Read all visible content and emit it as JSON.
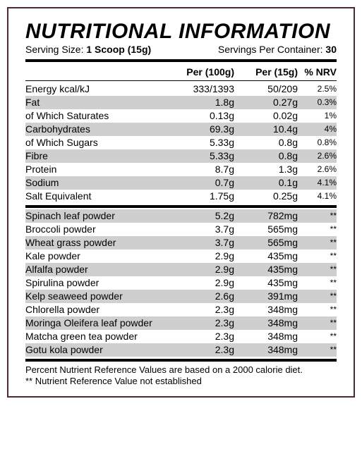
{
  "title": "NUTRITIONAL INFORMATION",
  "serving": {
    "size_label": "Serving Size:",
    "size_value": "1 Scoop (15g)",
    "per_container_label": "Servings Per Container:",
    "per_container_value": "30"
  },
  "headers": {
    "per100": "Per (100g)",
    "per15": "Per (15g)",
    "nrv": "% NRV"
  },
  "colors": {
    "border": "#4d2a2e",
    "shade": "#cfcfcf",
    "text": "#000000",
    "background": "#ffffff"
  },
  "section1": [
    {
      "name": "Energy kcal/kJ",
      "per100": "333/1393",
      "per15": "50/209",
      "nrv": "2.5%",
      "shade": false
    },
    {
      "name": "Fat",
      "per100": "1.8g",
      "per15": "0.27g",
      "nrv": "0.3%",
      "shade": true
    },
    {
      "name": "of Which Saturates",
      "per100": "0.13g",
      "per15": "0.02g",
      "nrv": "1%",
      "shade": false
    },
    {
      "name": "Carbohydrates",
      "per100": "69.3g",
      "per15": "10.4g",
      "nrv": "4%",
      "shade": true
    },
    {
      "name": "of Which Sugars",
      "per100": "5.33g",
      "per15": "0.8g",
      "nrv": "0.8%",
      "shade": false
    },
    {
      "name": "Fibre",
      "per100": "5.33g",
      "per15": "0.8g",
      "nrv": "2.6%",
      "shade": true
    },
    {
      "name": "Protein",
      "per100": "8.7g",
      "per15": "1.3g",
      "nrv": "2.6%",
      "shade": false
    },
    {
      "name": "Sodium",
      "per100": "0.7g",
      "per15": "0.1g",
      "nrv": "4.1%",
      "shade": true
    },
    {
      "name": "Salt Equivalent",
      "per100": "1.75g",
      "per15": "0.25g",
      "nrv": "4.1%",
      "shade": false
    }
  ],
  "section2": [
    {
      "name": "Spinach leaf powder",
      "per100": "5.2g",
      "per15": "782mg",
      "nrv": "**",
      "shade": true
    },
    {
      "name": "Broccoli powder",
      "per100": "3.7g",
      "per15": "565mg",
      "nrv": "**",
      "shade": false
    },
    {
      "name": "Wheat grass powder",
      "per100": "3.7g",
      "per15": "565mg",
      "nrv": "**",
      "shade": true
    },
    {
      "name": "Kale powder",
      "per100": "2.9g",
      "per15": "435mg",
      "nrv": "**",
      "shade": false
    },
    {
      "name": "Alfalfa powder",
      "per100": "2.9g",
      "per15": "435mg",
      "nrv": "**",
      "shade": true
    },
    {
      "name": "Spirulina powder",
      "per100": "2.9g",
      "per15": "435mg",
      "nrv": "**",
      "shade": false
    },
    {
      "name": "Kelp seaweed powder",
      "per100": "2.6g",
      "per15": "391mg",
      "nrv": "**",
      "shade": true
    },
    {
      "name": "Chlorella powder",
      "per100": "2.3g",
      "per15": "348mg",
      "nrv": "**",
      "shade": false
    },
    {
      "name": "Moringa Oleifera leaf powder",
      "per100": "2.3g",
      "per15": "348mg",
      "nrv": "**",
      "shade": true
    },
    {
      "name": "Matcha green tea powder",
      "per100": "2.3g",
      "per15": "348mg",
      "nrv": "**",
      "shade": false
    },
    {
      "name": "Gotu kola powder",
      "per100": "2.3g",
      "per15": "348mg",
      "nrv": "**",
      "shade": true
    }
  ],
  "footnote_line1": "Percent Nutrient Reference Values are based on a 2000 calorie diet.",
  "footnote_line2": "** Nutrient Reference Value not established"
}
